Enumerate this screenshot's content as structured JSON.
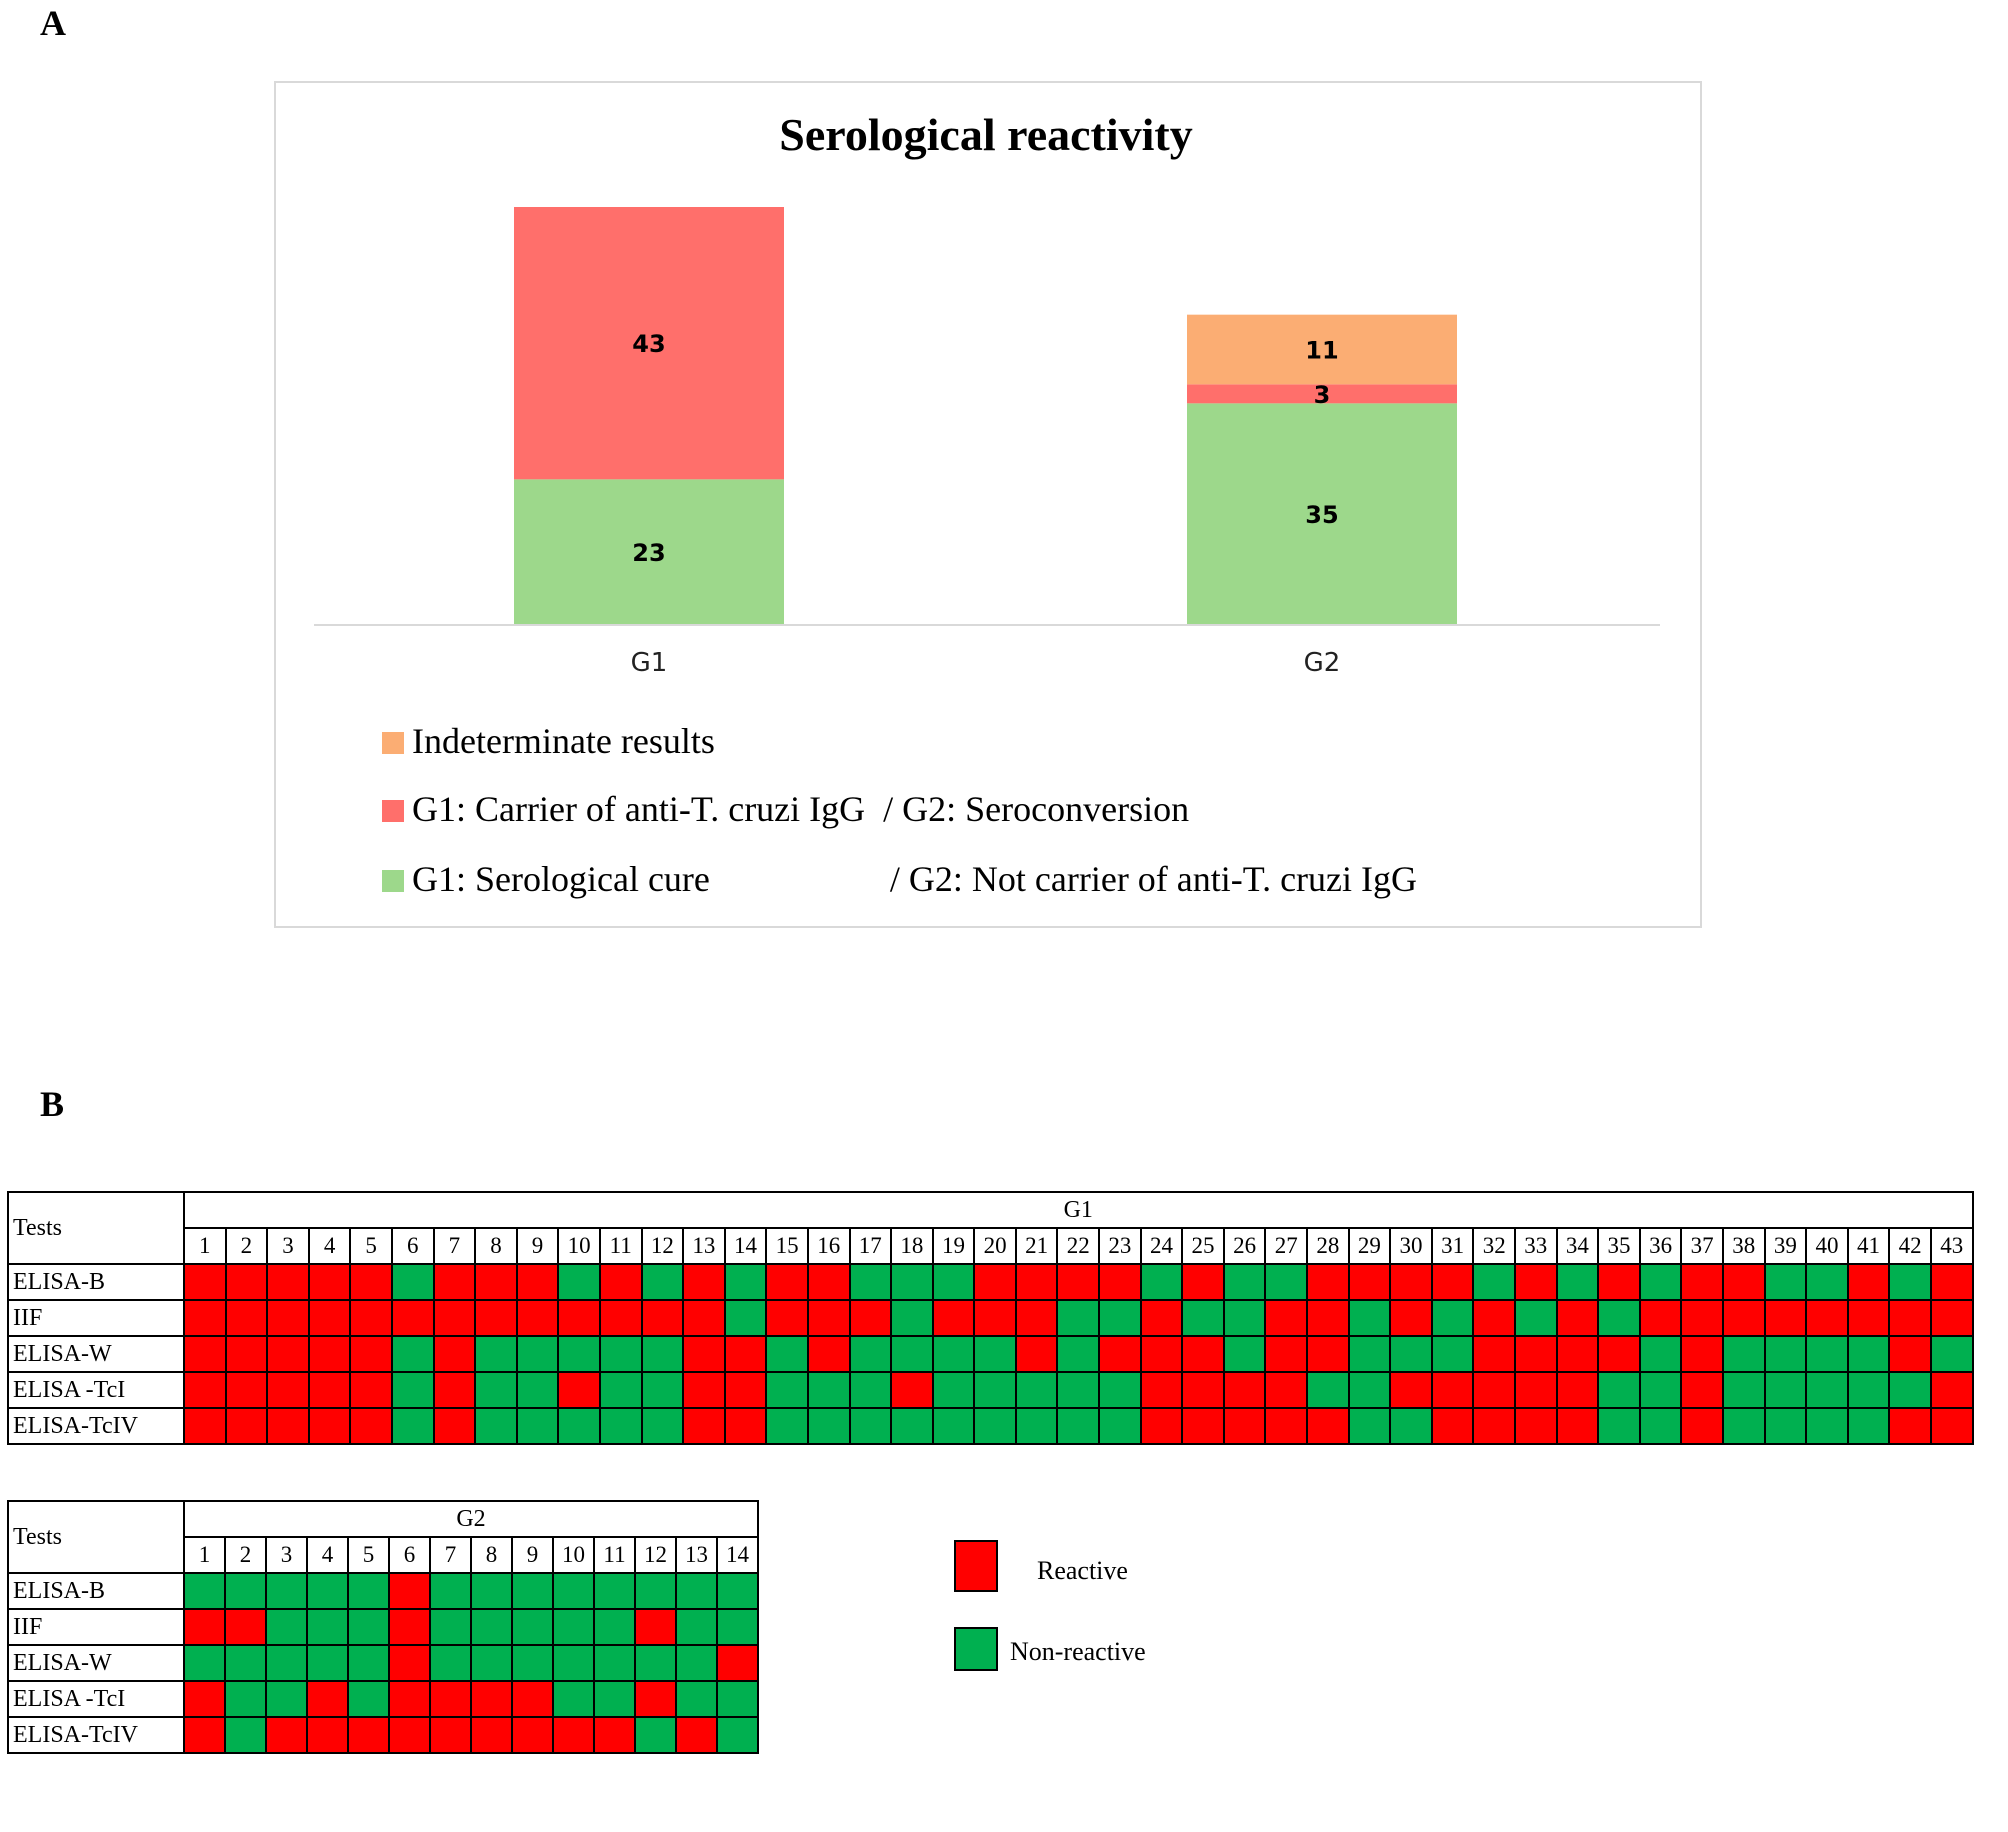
{
  "panel_a": {
    "letter": "A"
  },
  "panel_b": {
    "letter": "B"
  },
  "chart_data": {
    "type": "bar",
    "stacked": true,
    "title": "Serological reactivity",
    "categories": [
      "G1",
      "G2"
    ],
    "series": [
      {
        "name": "G1: Serological cure / G2: Not carrier of anti-T. cruzi IgG",
        "color": "#9dd88b",
        "values": [
          23,
          35
        ]
      },
      {
        "name": "G1: Carrier of anti-T. cruzi IgG / G2: Seroconversion",
        "color": "#ff6f6b",
        "values": [
          43,
          3
        ]
      },
      {
        "name": "Indeterminate results",
        "color": "#fbad73",
        "values": [
          0,
          11
        ]
      }
    ],
    "ylim": [
      0,
      66
    ],
    "legend": [
      {
        "text": "Indeterminate results",
        "color": "#fbad73"
      },
      {
        "text": "G1: Carrier of anti-T. cruzi IgG  / G2: Seroconversion",
        "color": "#ff6f6b"
      },
      {
        "text": "G1: Serological cure                    / G2: Not carrier of anti-T. cruzi IgG",
        "color": "#9dd88b"
      }
    ]
  },
  "tables": {
    "header_label": "Tests",
    "g1": {
      "group": "G1",
      "rows": [
        {
          "test": "ELISA-B",
          "cells": "RRRRRGRRRGRGRGRRGGGRRRRGRGGRRRRGRGRGRRGGRGR"
        },
        {
          "test": "IIF",
          "cells": "RRRRRRRRRRRRRGRRRGRRRGGRGGRRGRGRGRGRRRRRRRR"
        },
        {
          "test": "ELISA-W",
          "cells": "RRRRRGRGGGGGRRGRGGGGRGRRRGRRGGGRRRRGRGGGGRG"
        },
        {
          "test": "ELISA -TcI",
          "cells": "RRRRRGRGGRGGRRGGGRGGGGGRRRRGGRRRRRGGRGGGGGR"
        },
        {
          "test": "ELISA-TcIV",
          "cells": "RRRRRGRGGGGGRRGGGGGGGGGRRRRRGGRRRRGGRGGGGRR"
        }
      ]
    },
    "g2": {
      "group": "G2",
      "rows": [
        {
          "test": "ELISA-B",
          "cells": "GGGGGRGGGGGGGG"
        },
        {
          "test": "IIF",
          "cells": "RRGGGRGGGGGRGG"
        },
        {
          "test": "ELISA-W",
          "cells": "GGGGGRGGGGGGGR"
        },
        {
          "test": "ELISA -TcI",
          "cells": "RGGRGRRRRGGRGG"
        },
        {
          "test": "ELISA-TcIV",
          "cells": "RGRRRRRRRRRGRG"
        }
      ]
    },
    "key": {
      "reactive": "Reactive",
      "non_reactive": "Non-reactive",
      "reactive_color": "#ff0000",
      "non_reactive_color": "#00b050"
    }
  }
}
